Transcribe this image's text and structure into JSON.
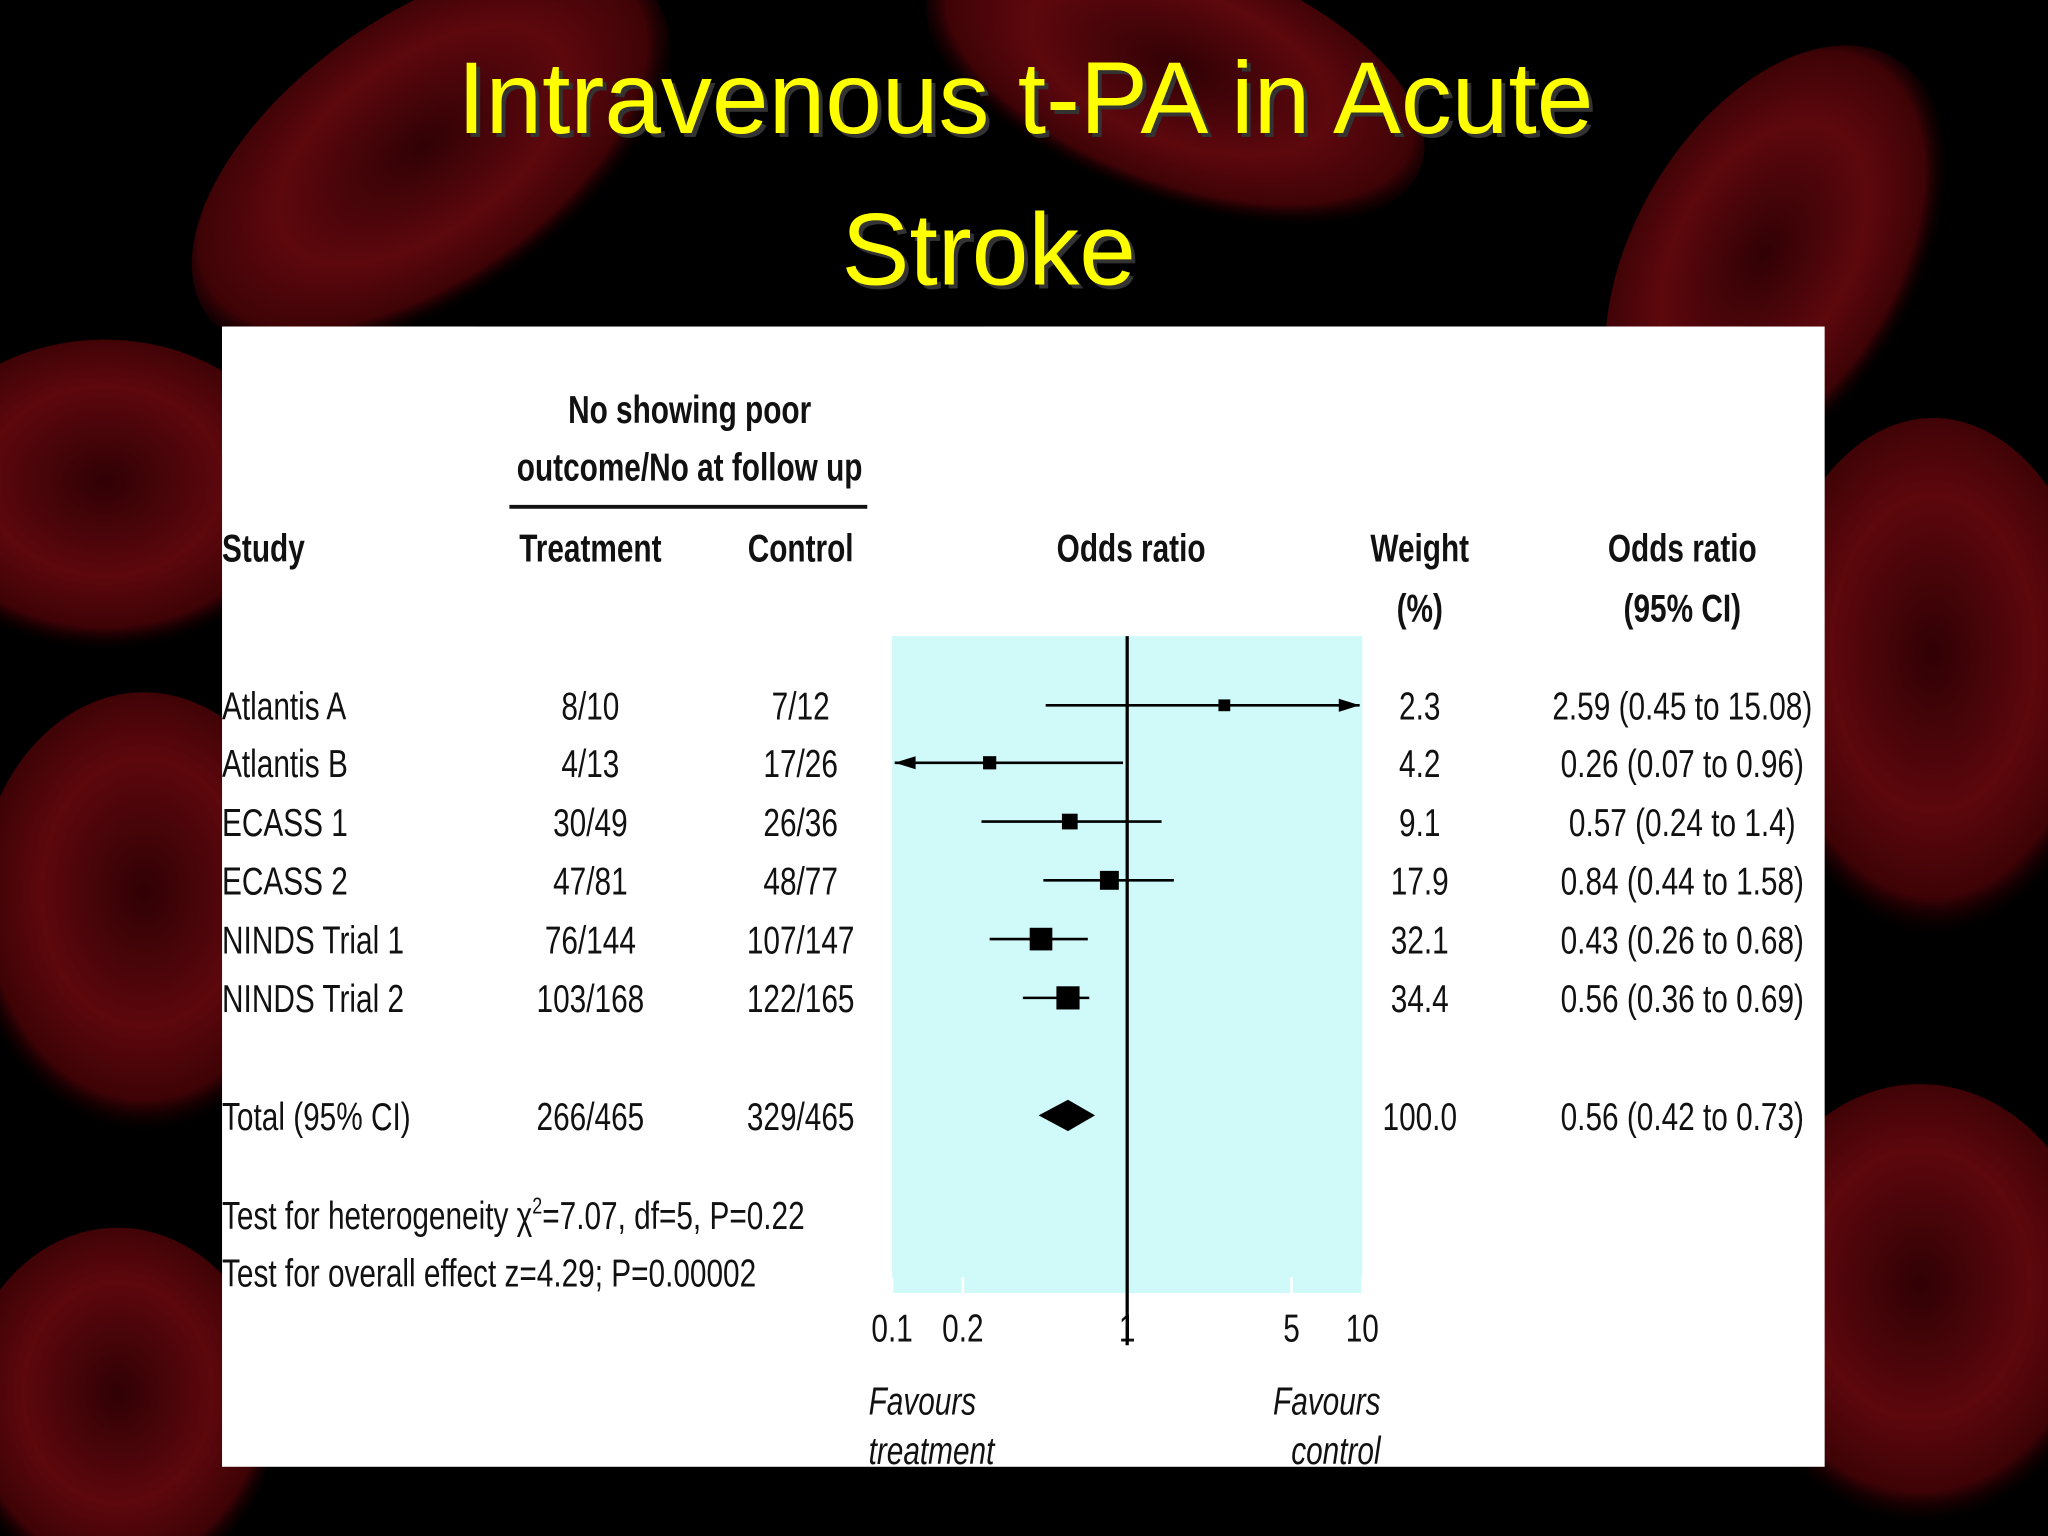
{
  "slide_title": [
    "Intravenous t-PA in Acute",
    "Stroke"
  ],
  "chart_data": {
    "type": "forest",
    "header_group": [
      "No showing poor",
      "outcome/No at follow up"
    ],
    "columns": {
      "study": "Study",
      "treatment": "Treatment",
      "control": "Control",
      "plot": "Odds ratio",
      "weight": [
        "Weight",
        "(%)"
      ],
      "ci": [
        "Odds ratio",
        "(95% CI)"
      ]
    },
    "studies": [
      {
        "name": "Atlantis A",
        "treatment": "8/10",
        "control": "7/12",
        "or": 2.59,
        "lo": 0.45,
        "hi": 15.08,
        "weight": 2.3,
        "ci_label": "2.59 (0.45 to 15.08)"
      },
      {
        "name": "Atlantis B",
        "treatment": "4/13",
        "control": "17/26",
        "or": 0.26,
        "lo": 0.07,
        "hi": 0.96,
        "weight": 4.2,
        "ci_label": "0.26 (0.07 to 0.96)"
      },
      {
        "name": "ECASS 1",
        "treatment": "30/49",
        "control": "26/36",
        "or": 0.57,
        "lo": 0.24,
        "hi": 1.4,
        "weight": 9.1,
        "ci_label": "0.57 (0.24 to 1.4)"
      },
      {
        "name": "ECASS 2",
        "treatment": "47/81",
        "control": "48/77",
        "or": 0.84,
        "lo": 0.44,
        "hi": 1.58,
        "weight": 17.9,
        "ci_label": "0.84 (0.44 to 1.58)"
      },
      {
        "name": "NINDS Trial 1",
        "treatment": "76/144",
        "control": "107/147",
        "or": 0.43,
        "lo": 0.26,
        "hi": 0.68,
        "weight": 32.1,
        "ci_label": "0.43 (0.26 to 0.68)"
      },
      {
        "name": "NINDS Trial 2",
        "treatment": "103/168",
        "control": "122/165",
        "or": 0.56,
        "lo": 0.36,
        "hi": 0.69,
        "weight": 34.4,
        "ci_label": "0.56 (0.36 to 0.69)"
      }
    ],
    "total": {
      "name": "Total (95% CI)",
      "treatment": "266/465",
      "control": "329/465",
      "or": 0.56,
      "lo": 0.42,
      "hi": 0.73,
      "weight": {
        "value": 100,
        "label": "100.0"
      },
      "ci_label": "0.56 (0.42 to 0.73)"
    },
    "notes": [
      [
        "Test for heterogeneity χ",
        "2",
        "=7.07, df=5, P=0.22"
      ],
      [
        "Test for overall effect z=4.29; P=0.00002"
      ]
    ],
    "xscale": "log",
    "xlim": [
      0.1,
      10
    ],
    "xticks": [
      0.1,
      0.2,
      1,
      5,
      10
    ],
    "left_label": [
      "Favours",
      "treatment"
    ],
    "right_label": [
      "Favours",
      "control"
    ],
    "mark_color": "#000000",
    "shade_color": "#d0fafa"
  }
}
